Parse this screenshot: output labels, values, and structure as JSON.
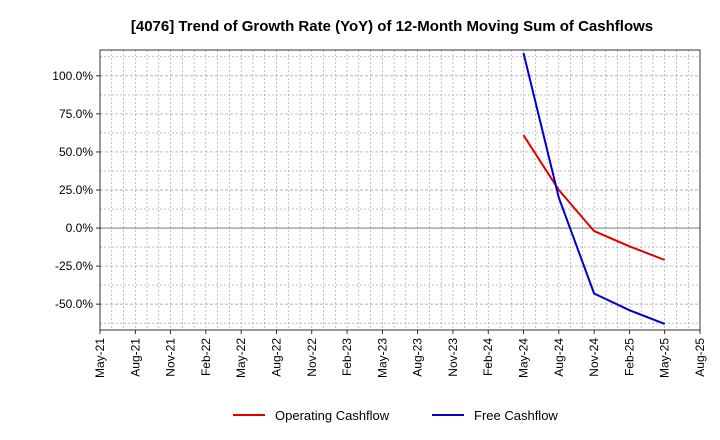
{
  "chart_data": {
    "type": "line",
    "title": "[4076]  Trend of Growth Rate (YoY) of 12-Month Moving Sum of Cashflows",
    "xlabel": "",
    "ylabel": "",
    "x_ticks": [
      "May-21",
      "Aug-21",
      "Nov-21",
      "Feb-22",
      "May-22",
      "Aug-22",
      "Nov-22",
      "Feb-23",
      "May-23",
      "Aug-23",
      "Nov-23",
      "Feb-24",
      "May-24",
      "Aug-24",
      "Nov-24",
      "Feb-25",
      "May-25",
      "Aug-25"
    ],
    "y_ticks": [
      "100.0%",
      "75.0%",
      "50.0%",
      "25.0%",
      "0.0%",
      "-25.0%",
      "-50.0%"
    ],
    "y_tick_values": [
      100,
      75,
      50,
      25,
      0,
      -25,
      -50
    ],
    "ylim": [
      -67,
      117
    ],
    "grid": true,
    "legend_position": "bottom-center",
    "series": [
      {
        "name": "Operating Cashflow",
        "color": "#e00000",
        "x": [
          "May-24",
          "Aug-24",
          "Nov-24",
          "Feb-25",
          "May-25"
        ],
        "values": [
          61,
          25,
          -2,
          -12,
          -21
        ]
      },
      {
        "name": "Free Cashflow",
        "color": "#0000cc",
        "x": [
          "May-24",
          "Aug-24",
          "Nov-24",
          "Feb-25",
          "May-25"
        ],
        "values": [
          115,
          20,
          -43,
          -54,
          -63
        ]
      }
    ]
  }
}
